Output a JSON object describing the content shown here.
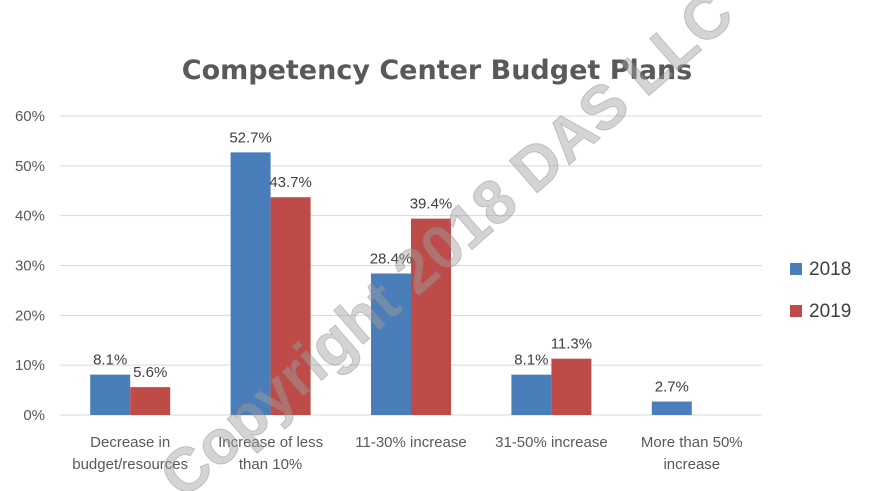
{
  "chart_data": {
    "type": "bar",
    "title": "Competency Center Budget Plans",
    "categories": [
      [
        "Decrease in",
        "budget/resources"
      ],
      [
        "Increase of less",
        "than 10%"
      ],
      [
        "11-30% increase"
      ],
      [
        "31-50% increase"
      ],
      [
        "More than 50%",
        "increase"
      ]
    ],
    "series": [
      {
        "name": "2018",
        "color": "#4a7ebb",
        "values": [
          8.1,
          52.7,
          28.4,
          8.1,
          2.7
        ]
      },
      {
        "name": "2019",
        "color": "#be4b48",
        "values": [
          5.6,
          43.7,
          39.4,
          11.3,
          null
        ]
      }
    ],
    "ylim": [
      0,
      60
    ],
    "yticks": [
      0,
      10,
      20,
      30,
      40,
      50,
      60
    ],
    "ytick_labels": [
      "0%",
      "10%",
      "20%",
      "30%",
      "40%",
      "50%",
      "60%"
    ],
    "value_suffix": "%",
    "legend_position": "right",
    "grid": true,
    "watermark": "Copyright 2018 DAS LLC"
  }
}
